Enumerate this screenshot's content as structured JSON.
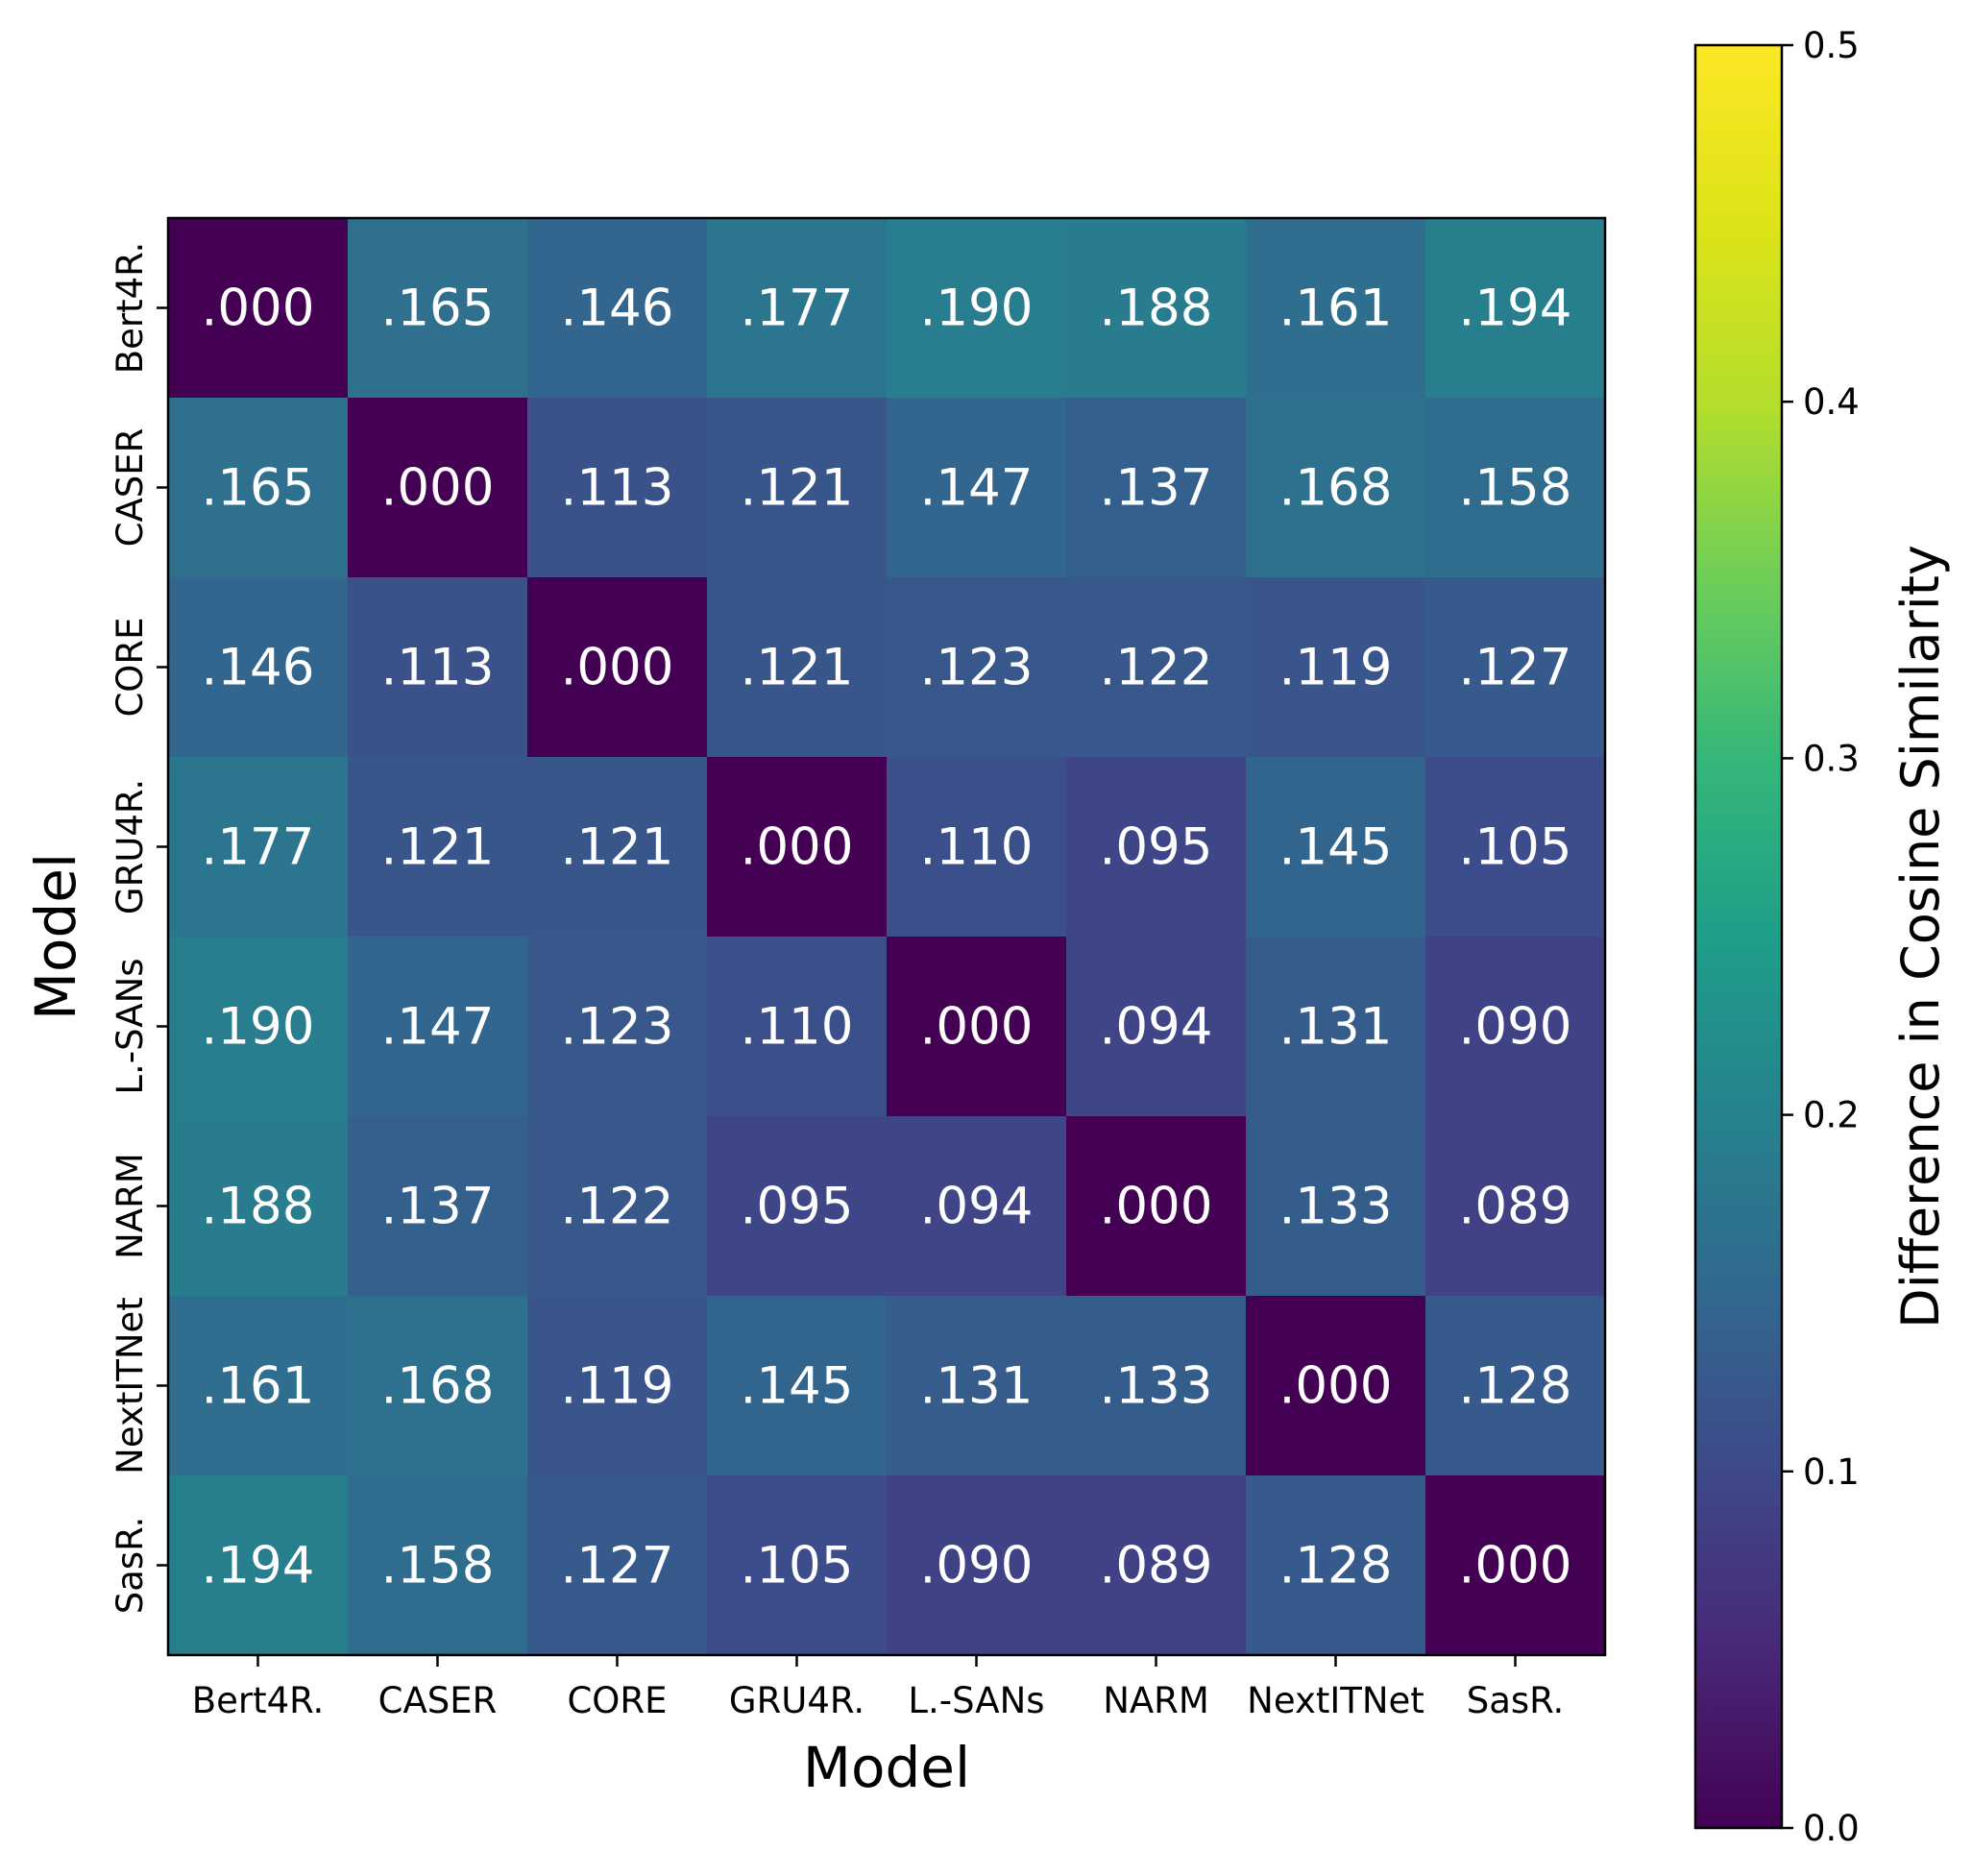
{
  "chart_data": {
    "type": "heatmap",
    "title": "",
    "xlabel": "Model",
    "ylabel": "Model",
    "x_categories": [
      "Bert4R.",
      "CASER",
      "CORE",
      "GRU4R.",
      "L.-SANs",
      "NARM",
      "NextITNet",
      "SasR."
    ],
    "y_categories": [
      "Bert4R.",
      "CASER",
      "CORE",
      "GRU4R.",
      "L.-SANs",
      "NARM",
      "NextITNet",
      "SasR."
    ],
    "values": [
      [
        0.0,
        0.165,
        0.146,
        0.177,
        0.19,
        0.188,
        0.161,
        0.194
      ],
      [
        0.165,
        0.0,
        0.113,
        0.121,
        0.147,
        0.137,
        0.168,
        0.158
      ],
      [
        0.146,
        0.113,
        0.0,
        0.121,
        0.123,
        0.122,
        0.119,
        0.127
      ],
      [
        0.177,
        0.121,
        0.121,
        0.0,
        0.11,
        0.095,
        0.145,
        0.105
      ],
      [
        0.19,
        0.147,
        0.123,
        0.11,
        0.0,
        0.094,
        0.131,
        0.09
      ],
      [
        0.188,
        0.137,
        0.122,
        0.095,
        0.094,
        0.0,
        0.133,
        0.089
      ],
      [
        0.161,
        0.168,
        0.119,
        0.145,
        0.131,
        0.133,
        0.0,
        0.128
      ],
      [
        0.194,
        0.158,
        0.127,
        0.105,
        0.09,
        0.089,
        0.128,
        0.0
      ]
    ],
    "cell_labels": [
      [
        ".000",
        ".165",
        ".146",
        ".177",
        ".190",
        ".188",
        ".161",
        ".194"
      ],
      [
        ".165",
        ".000",
        ".113",
        ".121",
        ".147",
        ".137",
        ".168",
        ".158"
      ],
      [
        ".146",
        ".113",
        ".000",
        ".121",
        ".123",
        ".122",
        ".119",
        ".127"
      ],
      [
        ".177",
        ".121",
        ".121",
        ".000",
        ".110",
        ".095",
        ".145",
        ".105"
      ],
      [
        ".190",
        ".147",
        ".123",
        ".110",
        ".000",
        ".094",
        ".131",
        ".090"
      ],
      [
        ".188",
        ".137",
        ".122",
        ".095",
        ".094",
        ".000",
        ".133",
        ".089"
      ],
      [
        ".161",
        ".168",
        ".119",
        ".145",
        ".131",
        ".133",
        ".000",
        ".128"
      ],
      [
        ".194",
        ".158",
        ".127",
        ".105",
        ".090",
        ".089",
        ".128",
        ".000"
      ]
    ],
    "colormap": "viridis",
    "colorbar": {
      "label": "Difference in Cosine Similarity",
      "range": [
        0.0,
        0.5
      ],
      "ticks": [
        "0.0",
        "0.1",
        "0.2",
        "0.3",
        "0.4",
        "0.5"
      ]
    },
    "grid": false
  }
}
